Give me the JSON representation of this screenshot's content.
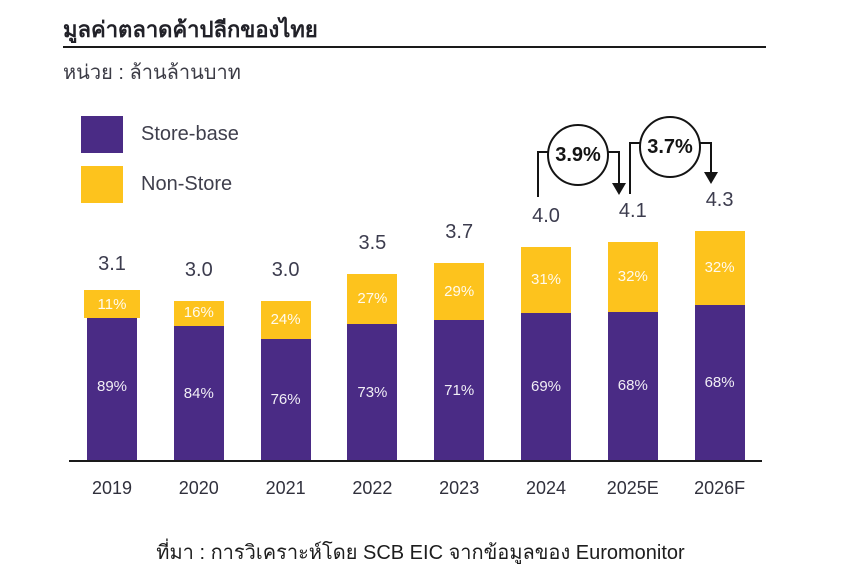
{
  "header": {
    "title": "มูลค่าตลาดค้าปลีกของไทย",
    "unit_label": "หน่วย : ล้านล้านบาท"
  },
  "colors": {
    "store_base": "#4a2b85",
    "non_store": "#fdc31d",
    "axis": "#1a1a1a",
    "value_label": "#3c3c4e",
    "bar_label_text": "#ffffff"
  },
  "legend": {
    "items": [
      {
        "label": "Store-base",
        "color": "#4a2b85"
      },
      {
        "label": "Non-Store",
        "color": "#fdc31d"
      }
    ]
  },
  "chart_data": {
    "type": "bar",
    "stacked": true,
    "title": "มูลค่าตลาดค้าปลีกของไทย",
    "ylabel": "ล้านล้านบาท",
    "unit": "ล้านล้านบาท",
    "categories": [
      "2019",
      "2020",
      "2021",
      "2022",
      "2023",
      "2024",
      "2025E",
      "2026F"
    ],
    "totals": [
      3.1,
      3.0,
      3.0,
      3.5,
      3.7,
      4.0,
      4.1,
      4.3
    ],
    "total_labels": [
      "3.1",
      "3.0",
      "3.0",
      "3.5",
      "3.7",
      "4.0",
      "4.1",
      "4.3"
    ],
    "series": [
      {
        "name": "Store-base",
        "pct": [
          89,
          84,
          76,
          73,
          71,
          69,
          68,
          68
        ],
        "pct_labels": [
          "89%",
          "84%",
          "76%",
          "73%",
          "71%",
          "69%",
          "68%",
          "68%"
        ]
      },
      {
        "name": "Non-Store",
        "pct": [
          11,
          16,
          24,
          27,
          29,
          31,
          32,
          32
        ],
        "pct_labels": [
          "11%",
          "16%",
          "24%",
          "27%",
          "29%",
          "31%",
          "32%",
          "32%"
        ]
      }
    ],
    "growth_annotations": [
      {
        "from": "2024",
        "to": "2025E",
        "value": "3.9%"
      },
      {
        "from": "2025E",
        "to": "2026F",
        "value": "3.7%"
      }
    ],
    "ylim": [
      0,
      4.5
    ],
    "grid": false,
    "y_axis_ticks_visible": false,
    "legend_position": "top-left"
  },
  "footer": {
    "source": "ที่มา : การวิเคราะห์โดย SCB EIC จากข้อมูลของ Euromonitor"
  }
}
